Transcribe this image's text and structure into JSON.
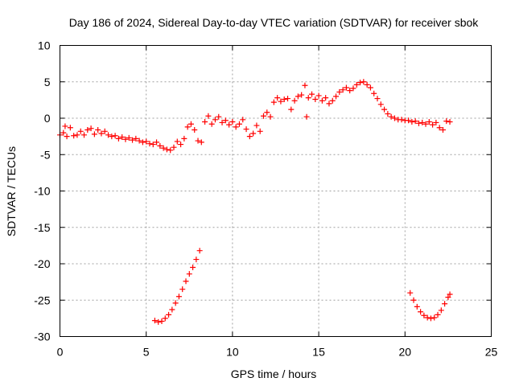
{
  "chart_data": {
    "type": "scatter",
    "title": "Day 186 of 2024, Sidereal Day-to-day VTEC variation (SDTVAR) for receiver sbok",
    "xlabel": "GPS time / hours",
    "ylabel": "SDTVAR / TECUs",
    "xlim": [
      0,
      25
    ],
    "ylim": [
      -30,
      10
    ],
    "x_ticks": [
      0,
      5,
      10,
      15,
      20,
      25
    ],
    "y_ticks": [
      -30,
      -25,
      -20,
      -15,
      -10,
      -5,
      0,
      5,
      10
    ],
    "grid": true,
    "marker": "plus",
    "series_color": "#ff0000",
    "series": [
      {
        "name": "sbok",
        "points": [
          [
            0.0,
            -2.3
          ],
          [
            0.2,
            -2.0
          ],
          [
            0.3,
            -1.1
          ],
          [
            0.4,
            -2.5
          ],
          [
            0.6,
            -1.3
          ],
          [
            0.8,
            -2.4
          ],
          [
            1.0,
            -2.3
          ],
          [
            1.2,
            -1.8
          ],
          [
            1.4,
            -2.3
          ],
          [
            1.6,
            -1.6
          ],
          [
            1.8,
            -1.4
          ],
          [
            2.0,
            -2.2
          ],
          [
            2.2,
            -1.6
          ],
          [
            2.4,
            -2.1
          ],
          [
            2.6,
            -1.8
          ],
          [
            2.8,
            -2.3
          ],
          [
            3.0,
            -2.5
          ],
          [
            3.2,
            -2.4
          ],
          [
            3.4,
            -2.8
          ],
          [
            3.6,
            -2.6
          ],
          [
            3.8,
            -2.9
          ],
          [
            4.0,
            -2.7
          ],
          [
            4.2,
            -3.0
          ],
          [
            4.4,
            -2.8
          ],
          [
            4.6,
            -3.1
          ],
          [
            4.8,
            -3.3
          ],
          [
            5.0,
            -3.2
          ],
          [
            5.2,
            -3.5
          ],
          [
            5.4,
            -3.6
          ],
          [
            5.6,
            -3.3
          ],
          [
            5.8,
            -3.8
          ],
          [
            6.0,
            -4.1
          ],
          [
            6.2,
            -4.3
          ],
          [
            6.4,
            -4.4
          ],
          [
            6.6,
            -4.0
          ],
          [
            6.8,
            -3.2
          ],
          [
            7.0,
            -3.6
          ],
          [
            7.2,
            -2.8
          ],
          [
            7.4,
            -1.2
          ],
          [
            7.6,
            -0.8
          ],
          [
            7.8,
            -1.6
          ],
          [
            8.0,
            -3.1
          ],
          [
            8.2,
            -3.3
          ],
          [
            8.4,
            -0.5
          ],
          [
            8.6,
            0.3
          ],
          [
            8.8,
            -0.8
          ],
          [
            9.0,
            -0.2
          ],
          [
            9.2,
            0.2
          ],
          [
            9.4,
            -0.6
          ],
          [
            9.6,
            -0.3
          ],
          [
            9.8,
            -0.9
          ],
          [
            10.0,
            -0.5
          ],
          [
            10.2,
            -1.2
          ],
          [
            10.4,
            -0.8
          ],
          [
            10.6,
            -0.2
          ],
          [
            10.8,
            -1.5
          ],
          [
            11.0,
            -2.5
          ],
          [
            11.2,
            -2.1
          ],
          [
            11.4,
            -1.0
          ],
          [
            11.6,
            -1.8
          ],
          [
            11.8,
            0.3
          ],
          [
            12.0,
            0.8
          ],
          [
            12.2,
            0.2
          ],
          [
            12.4,
            2.2
          ],
          [
            12.6,
            2.8
          ],
          [
            12.8,
            2.3
          ],
          [
            13.0,
            2.6
          ],
          [
            13.2,
            2.7
          ],
          [
            13.4,
            1.2
          ],
          [
            13.6,
            2.4
          ],
          [
            13.8,
            3.0
          ],
          [
            14.0,
            3.2
          ],
          [
            14.2,
            4.5
          ],
          [
            14.3,
            0.2
          ],
          [
            14.4,
            2.8
          ],
          [
            14.6,
            3.3
          ],
          [
            14.8,
            2.6
          ],
          [
            15.0,
            3.1
          ],
          [
            15.2,
            2.4
          ],
          [
            15.4,
            2.8
          ],
          [
            15.6,
            2.0
          ],
          [
            15.8,
            2.4
          ],
          [
            16.0,
            3.0
          ],
          [
            16.2,
            3.6
          ],
          [
            16.4,
            3.9
          ],
          [
            16.6,
            4.2
          ],
          [
            16.8,
            3.8
          ],
          [
            17.0,
            4.1
          ],
          [
            17.2,
            4.6
          ],
          [
            17.4,
            4.9
          ],
          [
            17.6,
            5.0
          ],
          [
            17.8,
            4.6
          ],
          [
            18.0,
            4.2
          ],
          [
            18.2,
            3.4
          ],
          [
            18.4,
            2.7
          ],
          [
            18.6,
            1.9
          ],
          [
            18.8,
            1.2
          ],
          [
            19.0,
            0.6
          ],
          [
            19.2,
            0.2
          ],
          [
            19.4,
            0.0
          ],
          [
            19.6,
            -0.2
          ],
          [
            19.8,
            -0.2
          ],
          [
            20.0,
            -0.3
          ],
          [
            20.2,
            -0.3
          ],
          [
            20.4,
            -0.5
          ],
          [
            20.6,
            -0.4
          ],
          [
            20.8,
            -0.7
          ],
          [
            21.0,
            -0.6
          ],
          [
            21.2,
            -0.8
          ],
          [
            21.4,
            -0.5
          ],
          [
            21.6,
            -0.9
          ],
          [
            21.8,
            -0.6
          ],
          [
            22.0,
            -1.3
          ],
          [
            22.2,
            -1.6
          ],
          [
            22.4,
            -0.4
          ],
          [
            22.6,
            -0.5
          ],
          [
            5.5,
            -27.8
          ],
          [
            5.7,
            -28.0
          ],
          [
            5.9,
            -27.9
          ],
          [
            6.1,
            -27.5
          ],
          [
            6.3,
            -27.0
          ],
          [
            6.5,
            -26.3
          ],
          [
            6.7,
            -25.4
          ],
          [
            6.9,
            -24.5
          ],
          [
            7.1,
            -23.5
          ],
          [
            7.3,
            -22.4
          ],
          [
            7.5,
            -21.4
          ],
          [
            7.7,
            -20.5
          ],
          [
            7.9,
            -19.4
          ],
          [
            8.1,
            -18.2
          ],
          [
            20.3,
            -24.0
          ],
          [
            20.5,
            -25.0
          ],
          [
            20.7,
            -25.9
          ],
          [
            20.9,
            -26.6
          ],
          [
            21.1,
            -27.1
          ],
          [
            21.3,
            -27.4
          ],
          [
            21.5,
            -27.5
          ],
          [
            21.7,
            -27.4
          ],
          [
            21.9,
            -27.0
          ],
          [
            22.1,
            -26.4
          ],
          [
            22.3,
            -25.5
          ],
          [
            22.5,
            -24.6
          ],
          [
            22.6,
            -24.2
          ]
        ]
      }
    ]
  }
}
